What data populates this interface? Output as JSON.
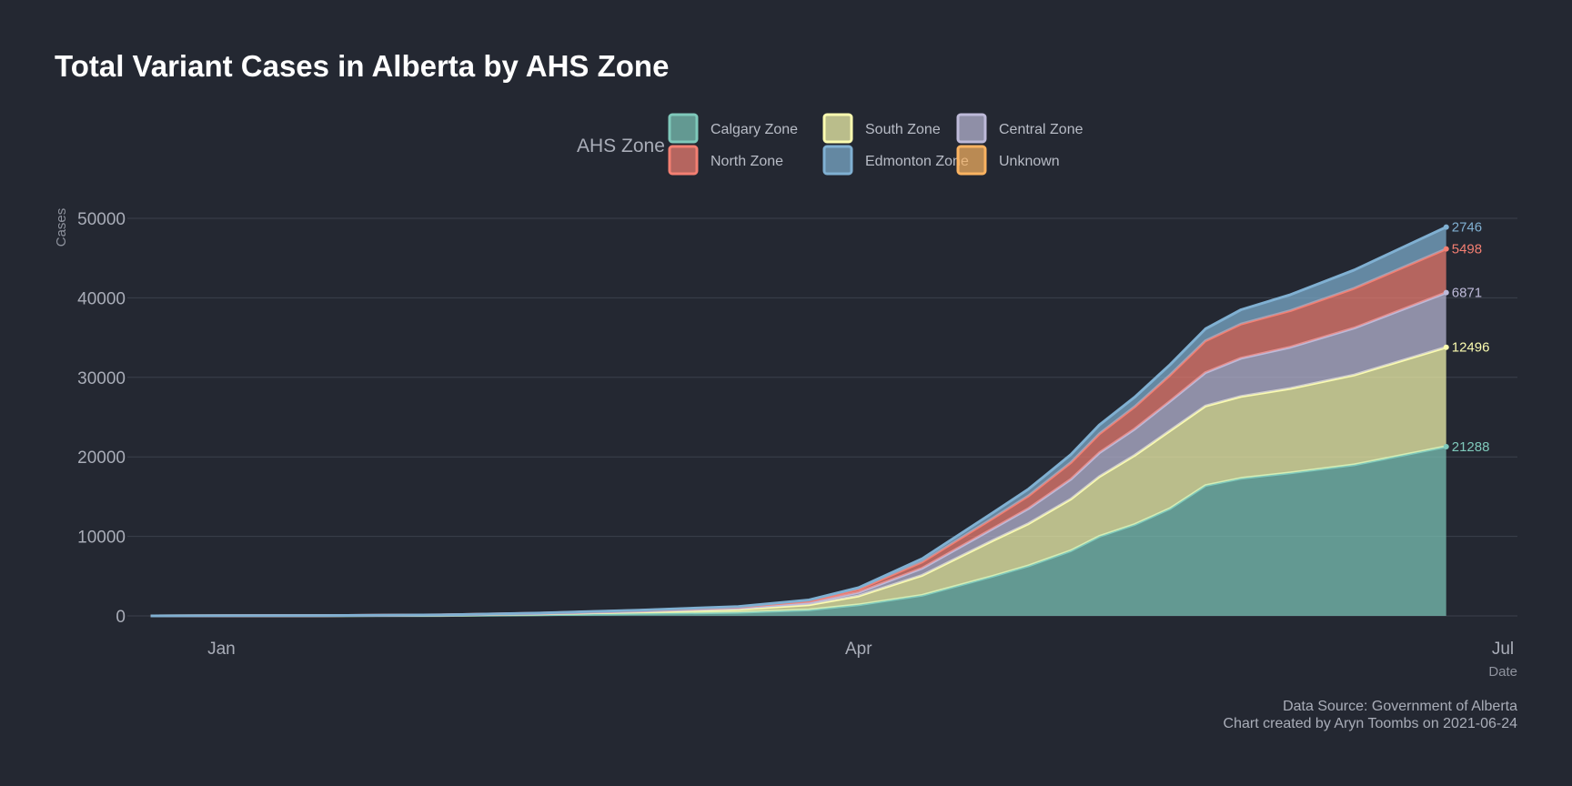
{
  "chart_data": {
    "type": "area",
    "title": "Total Variant Cases in Alberta by AHS Zone",
    "xlabel": "Date",
    "ylabel": "Cases",
    "stacked": true,
    "legend": {
      "title": "AHS Zone",
      "placement": "top-center",
      "entries": [
        "Calgary Zone",
        "North Zone",
        "South Zone",
        "Edmonton Zone",
        "Central Zone",
        "Unknown"
      ]
    },
    "x_ticks": [
      "Jan",
      "Apr",
      "Jul"
    ],
    "x_range": [
      "2020-12-20",
      "2021-07-01"
    ],
    "y_ticks": [
      "0",
      "10000",
      "20000",
      "30000",
      "40000",
      "50000"
    ],
    "ylim": [
      0,
      50000
    ],
    "grid": true,
    "x": [
      "2020-12-22",
      "2021-01-15",
      "2021-02-01",
      "2021-02-15",
      "2021-03-01",
      "2021-03-15",
      "2021-03-25",
      "2021-04-01",
      "2021-04-10",
      "2021-04-20",
      "2021-04-25",
      "2021-05-01",
      "2021-05-05",
      "2021-05-10",
      "2021-05-15",
      "2021-05-20",
      "2021-05-25",
      "2021-06-01",
      "2021-06-10",
      "2021-06-23"
    ],
    "series": [
      {
        "name": "Calgary Zone",
        "color": "#7fc9bb",
        "values": [
          0,
          20,
          50,
          150,
          300,
          450,
          750,
          1400,
          2600,
          5000,
          6300,
          8200,
          10000,
          11500,
          13500,
          16400,
          17300,
          18000,
          19000,
          21288
        ]
      },
      {
        "name": "Edmonton Zone",
        "color": "#fbfcb0",
        "values": [
          0,
          15,
          40,
          100,
          220,
          380,
          650,
          1100,
          2500,
          4500,
          5300,
          6500,
          7500,
          8700,
          9800,
          10000,
          10300,
          10600,
          11300,
          12496
        ]
      },
      {
        "name": "North Zone",
        "color": "#bebad9",
        "values": [
          0,
          5,
          20,
          50,
          90,
          150,
          260,
          450,
          900,
          1500,
          1900,
          2500,
          3000,
          3300,
          3700,
          4200,
          4800,
          5200,
          5900,
          6871
        ]
      },
      {
        "name": "Central Zone",
        "color": "#f47f72",
        "values": [
          0,
          5,
          15,
          40,
          80,
          140,
          240,
          400,
          800,
          1300,
          1600,
          2100,
          2400,
          2800,
          3300,
          4000,
          4300,
          4600,
          5000,
          5498
        ]
      },
      {
        "name": "South Zone",
        "color": "#80b0d2",
        "values": [
          0,
          2,
          5,
          15,
          30,
          60,
          100,
          200,
          400,
          700,
          850,
          1000,
          1100,
          1200,
          1300,
          1500,
          1800,
          2000,
          2300,
          2746
        ]
      },
      {
        "name": "Unknown",
        "color": "#fbb361",
        "values": [
          0,
          0,
          0,
          0,
          0,
          0,
          0,
          0,
          0,
          0,
          0,
          0,
          0,
          0,
          0,
          0,
          0,
          0,
          0,
          0
        ]
      }
    ],
    "end_labels": [
      "21288",
      "12496",
      "6871",
      "5498",
      "2746"
    ]
  },
  "caption": {
    "line1": "Data Source: Government of Alberta",
    "line2": "Chart created by Aryn Toombs on 2021-06-24"
  }
}
